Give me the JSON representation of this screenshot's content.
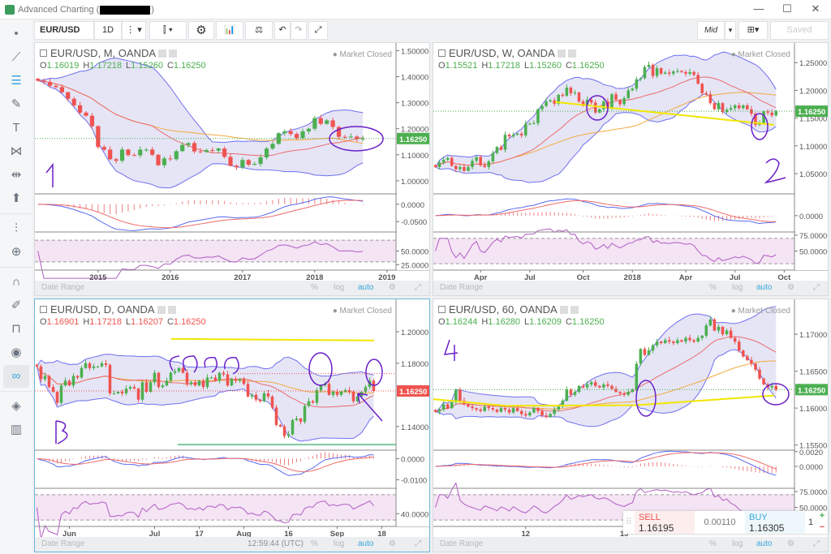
{
  "window": {
    "title": "Advanced Charting (",
    "title_end": ")",
    "minimize": "—",
    "maximize": "☐",
    "close": "✕"
  },
  "toolbar": {
    "symbol": "EUR/USD",
    "interval": "1D",
    "price_type": "Mid",
    "saved": "Saved"
  },
  "colors": {
    "up": "#4caf50",
    "down": "#ef5350",
    "band": "#6f70ee",
    "sma": "#ec6b6b",
    "ema": "#f4a93c",
    "macd": "#5a6af0",
    "signal": "#f06a6a",
    "rsi": "#b25cc4",
    "accent": "#39a6dc"
  },
  "date_range": {
    "label": "Date Range",
    "percent": "%",
    "log": "log",
    "auto": "auto",
    "clock": "12:59:44 (UTC)"
  },
  "trade": {
    "sell_label": "SELL",
    "sell_price": "1.16195",
    "spread": "0.00110",
    "buy_label": "BUY",
    "buy_price": "1.16305",
    "quantity": "1",
    "plus": "+",
    "minus": "−"
  },
  "panes": [
    {
      "title": "EUR/USD, M, OANDA",
      "status": "● Market Closed",
      "o": "1.16019",
      "h": "1.17218",
      "l": "1.15260",
      "c": "1.16250",
      "ohlc_color": "#4caf50",
      "last_price": 1.1625,
      "last_label": "1.16250",
      "price_color": "#4caf50",
      "y_range": [
        0.95,
        1.52
      ],
      "y_ticks": [
        {
          "v": 1.5,
          "t": "1.50000"
        },
        {
          "v": 1.4,
          "t": "1.40000"
        },
        {
          "v": 1.3,
          "t": "1.30000"
        },
        {
          "v": 1.2,
          "t": "1.20000"
        },
        {
          "v": 1.1,
          "t": "1.10000"
        },
        {
          "v": 1.0,
          "t": "1.00000"
        }
      ],
      "macd_range": [
        -0.08,
        0.03
      ],
      "macd_ticks": [
        {
          "v": 0,
          "t": "0.0000"
        },
        {
          "v": -0.05,
          "t": "-0.0500"
        }
      ],
      "rsi_range": [
        15,
        85
      ],
      "rsi_ticks": [
        {
          "v": 50,
          "t": "50.0000"
        },
        {
          "v": 25,
          "t": "25.0000"
        }
      ],
      "visible_bars": 60,
      "x_labels": [
        {
          "i": 10,
          "t": "2015"
        },
        {
          "i": 22,
          "t": "2016"
        },
        {
          "i": 34,
          "t": "2017"
        },
        {
          "i": 46,
          "t": "2018"
        },
        {
          "i": 58,
          "t": "2019"
        }
      ],
      "closes": [
        1.385,
        1.38,
        1.365,
        1.36,
        1.34,
        1.315,
        1.29,
        1.262,
        1.25,
        1.21,
        1.13,
        1.12,
        1.083,
        1.077,
        1.12,
        1.099,
        1.098,
        1.12,
        1.12,
        1.1,
        1.06,
        1.086,
        1.083,
        1.114,
        1.138,
        1.145,
        1.113,
        1.111,
        1.118,
        1.116,
        1.124,
        1.092,
        1.058,
        1.052,
        1.08,
        1.062,
        1.065,
        1.09,
        1.124,
        1.142,
        1.183,
        1.19,
        1.18,
        1.164,
        1.19,
        1.2,
        1.241,
        1.219,
        1.232,
        1.207,
        1.169,
        1.168,
        1.17,
        1.16,
        1.1625
      ]
    },
    {
      "title": "EUR/USD, W, OANDA",
      "status": "● Market Closed",
      "o": "1.15521",
      "h": "1.17218",
      "l": "1.15260",
      "c": "1.16250",
      "ohlc_color": "#4caf50",
      "last_price": 1.1625,
      "last_label": "1.16250",
      "price_color": "#4caf50",
      "y_range": [
        1.0135,
        1.281
      ],
      "y_ticks": [
        {
          "v": 1.25,
          "t": "1.25000"
        },
        {
          "v": 1.2,
          "t": "1.20000"
        },
        {
          "v": 1.15,
          "t": "1.15000"
        },
        {
          "v": 1.1,
          "t": "1.10000"
        },
        {
          "v": 1.05,
          "t": "1.05000"
        }
      ],
      "macd_range": [
        -0.03,
        0.04
      ],
      "macd_ticks": [
        {
          "v": 0,
          "t": "0.0000"
        }
      ],
      "rsi_range": [
        20,
        80
      ],
      "rsi_ticks": [
        {
          "v": 75,
          "t": "75.0000"
        },
        {
          "v": 50,
          "t": "50.0000"
        }
      ],
      "visible_bars": 88,
      "x_labels": [
        {
          "i": 11,
          "t": "Apr"
        },
        {
          "i": 23,
          "t": "Jul"
        },
        {
          "i": 36,
          "t": "Oct"
        },
        {
          "i": 48,
          "t": "2018"
        },
        {
          "i": 61,
          "t": "Apr"
        },
        {
          "i": 73,
          "t": "Jul"
        },
        {
          "i": 85,
          "t": "Oct"
        }
      ],
      "closes": [
        1.062,
        1.07,
        1.075,
        1.078,
        1.064,
        1.058,
        1.062,
        1.055,
        1.062,
        1.073,
        1.08,
        1.065,
        1.062,
        1.072,
        1.087,
        1.098,
        1.093,
        1.12,
        1.117,
        1.12,
        1.122,
        1.119,
        1.14,
        1.14,
        1.141,
        1.166,
        1.172,
        1.18,
        1.182,
        1.176,
        1.192,
        1.19,
        1.205,
        1.195,
        1.196,
        1.18,
        1.172,
        1.183,
        1.178,
        1.16,
        1.166,
        1.18,
        1.167,
        1.193,
        1.183,
        1.175,
        1.186,
        1.2,
        1.203,
        1.22,
        1.222,
        1.242,
        1.246,
        1.226,
        1.24,
        1.23,
        1.232,
        1.23,
        1.234,
        1.235,
        1.233,
        1.23,
        1.233,
        1.228,
        1.212,
        1.195,
        1.193,
        1.177,
        1.166,
        1.177,
        1.161,
        1.165,
        1.168,
        1.173,
        1.168,
        1.173,
        1.166,
        1.158,
        1.138,
        1.141,
        1.162,
        1.16,
        1.155,
        1.1625
      ]
    },
    {
      "title": "EUR/USD, D, OANDA",
      "status": "● Market Closed",
      "o": "1.16901",
      "h": "1.17218",
      "l": "1.16207",
      "c": "1.16250",
      "ohlc_color": "#ef5350",
      "last_price": 1.1625,
      "last_label": "1.16250",
      "price_color": "#ef5350",
      "y_range": [
        1.125,
        1.219
      ],
      "y_ticks": [
        {
          "v": 1.2,
          "t": "1.20000"
        },
        {
          "v": 1.18,
          "t": "1.18000"
        },
        {
          "v": 1.14,
          "t": "1.14000"
        }
      ],
      "macd_range": [
        -0.014,
        0.004
      ],
      "macd_ticks": [
        {
          "v": 0,
          "t": "0.0000"
        },
        {
          "v": -0.01,
          "t": "-0.0100"
        }
      ],
      "rsi_range": [
        20,
        80
      ],
      "rsi_ticks": [
        {
          "v": 40,
          "t": "40.0000"
        }
      ],
      "visible_bars": 89,
      "x_labels": [
        {
          "i": 8,
          "t": "Jun"
        },
        {
          "i": 29,
          "t": "Jul"
        },
        {
          "i": 40,
          "t": "17"
        },
        {
          "i": 51,
          "t": "Aug"
        },
        {
          "i": 62,
          "t": "16"
        },
        {
          "i": 74,
          "t": "Sep"
        },
        {
          "i": 85,
          "t": "18"
        }
      ],
      "closes": [
        1.178,
        1.17,
        1.172,
        1.165,
        1.162,
        1.155,
        1.166,
        1.169,
        1.166,
        1.172,
        1.171,
        1.177,
        1.18,
        1.177,
        1.178,
        1.178,
        1.18,
        1.179,
        1.161,
        1.161,
        1.162,
        1.161,
        1.164,
        1.165,
        1.164,
        1.157,
        1.168,
        1.162,
        1.168,
        1.174,
        1.165,
        1.166,
        1.169,
        1.174,
        1.175,
        1.177,
        1.174,
        1.167,
        1.168,
        1.166,
        1.169,
        1.165,
        1.171,
        1.171,
        1.169,
        1.174,
        1.173,
        1.166,
        1.17,
        1.169,
        1.17,
        1.167,
        1.159,
        1.16,
        1.157,
        1.156,
        1.161,
        1.159,
        1.152,
        1.141,
        1.14,
        1.134,
        1.135,
        1.144,
        1.145,
        1.143,
        1.153,
        1.156,
        1.155,
        1.163,
        1.166,
        1.167,
        1.16,
        1.162,
        1.16,
        1.162,
        1.163,
        1.162,
        1.156,
        1.159,
        1.162,
        1.165,
        1.169,
        1.1625
      ]
    },
    {
      "title": "EUR/USD, 60, OANDA",
      "status": "● Market Closed",
      "o": "1.16244",
      "h": "1.16280",
      "l": "1.16209",
      "c": "1.16250",
      "ohlc_color": "#4caf50",
      "last_price": 1.1625,
      "last_label": "1.16250",
      "price_color": "#4caf50",
      "y_range": [
        1.1543,
        1.1744
      ],
      "y_ticks": [
        {
          "v": 1.17,
          "t": "1.17000"
        },
        {
          "v": 1.165,
          "t": "1.16500"
        },
        {
          "v": 1.16,
          "t": "1.16000"
        },
        {
          "v": 1.155,
          "t": "1.15500"
        }
      ],
      "macd_range": [
        -0.003,
        0.0022
      ],
      "macd_ticks": [
        {
          "v": 0.002,
          "t": "0.0020"
        },
        {
          "v": 0,
          "t": "0.0000"
        }
      ],
      "rsi_range": [
        20,
        80
      ],
      "rsi_ticks": [
        {
          "v": 75,
          "t": "75.0000"
        },
        {
          "v": 50,
          "t": "50.0000"
        }
      ],
      "visible_bars": 88,
      "x_labels": [
        {
          "i": 22,
          "t": "12"
        },
        {
          "i": 46,
          "t": "13"
        }
      ],
      "closes": [
        1.1595,
        1.1598,
        1.1605,
        1.16,
        1.1608,
        1.1625,
        1.161,
        1.1605,
        1.1602,
        1.16,
        1.1598,
        1.1596,
        1.1602,
        1.16,
        1.1598,
        1.1595,
        1.16,
        1.1598,
        1.1594,
        1.16,
        1.1596,
        1.1592,
        1.159,
        1.1594,
        1.16,
        1.1596,
        1.159,
        1.1588,
        1.1592,
        1.1598,
        1.1602,
        1.161,
        1.1625,
        1.1618,
        1.1622,
        1.163,
        1.1628,
        1.1632,
        1.1635,
        1.163,
        1.1628,
        1.1632,
        1.163,
        1.1626,
        1.1622,
        1.162,
        1.1618,
        1.1622,
        1.1625,
        1.166,
        1.168,
        1.1672,
        1.1678,
        1.1685,
        1.169,
        1.1688,
        1.1692,
        1.169,
        1.1688,
        1.1692,
        1.169,
        1.1695,
        1.1692,
        1.169,
        1.1695,
        1.1698,
        1.1712,
        1.172,
        1.1705,
        1.171,
        1.17,
        1.1705,
        1.1695,
        1.169,
        1.1678,
        1.167,
        1.1665,
        1.166,
        1.1652,
        1.164,
        1.1632,
        1.1628,
        1.163,
        1.1625
      ]
    }
  ]
}
